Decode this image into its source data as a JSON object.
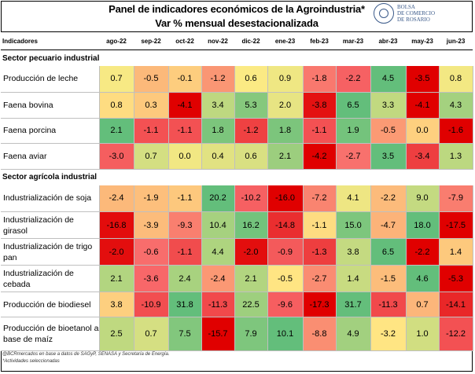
{
  "header": {
    "title": "Panel de indicadores económicos de la Agroindustria*",
    "subtitle": "Var % mensual desestacionalizada",
    "logo_text": [
      "BOLSA",
      "DE COMERCIO",
      "DE ROSARIO"
    ]
  },
  "footnotes": [
    "@BCRmercados en base a datos de SAGyP, SENASA y Secretaría de Energía.",
    "*Actividades seleccionadas"
  ],
  "colors": {
    "red": "#e00000",
    "orange": "#f8696b",
    "yellow": "#ffeb84",
    "green": "#63be7b"
  },
  "chart_data": {
    "type": "table",
    "row_header": "Indicadores",
    "columns": [
      "ago-22",
      "sep-22",
      "oct-22",
      "nov-22",
      "dic-22",
      "ene-23",
      "feb-23",
      "mar-23",
      "abr-23",
      "may-23",
      "jun-23"
    ],
    "sections": [
      {
        "name": "Sector pecuario industrial",
        "rows": [
          {
            "label": "Producción de leche",
            "values": [
              0.7,
              -0.5,
              -0.1,
              -1.2,
              0.6,
              0.9,
              -1.8,
              -2.2,
              4.5,
              -3.5,
              0.8
            ]
          },
          {
            "label": "Faena bovina",
            "values": [
              0.8,
              0.3,
              -4.1,
              3.4,
              5.3,
              2.0,
              -3.8,
              6.5,
              3.3,
              -4.1,
              4.3
            ]
          },
          {
            "label": "Faena porcina",
            "values": [
              2.1,
              -1.1,
              -1.1,
              1.8,
              -1.2,
              1.8,
              -1.1,
              1.9,
              -0.5,
              0.0,
              -1.6
            ]
          },
          {
            "label": "Faena aviar",
            "values": [
              -3.0,
              0.7,
              0.0,
              0.4,
              0.6,
              2.1,
              -4.2,
              -2.7,
              3.5,
              -3.4,
              1.3
            ]
          }
        ]
      },
      {
        "name": "Sector agrícola industrial",
        "rows": [
          {
            "label": "Industrialización de soja",
            "values": [
              -2.4,
              -1.9,
              -1.1,
              20.2,
              -10.2,
              -16.0,
              -7.2,
              4.1,
              -2.2,
              9.0,
              -7.9
            ]
          },
          {
            "label": "Industrialización de girasol",
            "values": [
              -16.8,
              -3.9,
              -9.3,
              10.4,
              16.2,
              -14.8,
              -1.1,
              15.0,
              -4.7,
              18.0,
              -17.5
            ]
          },
          {
            "label": "Industrialización de trigo pan",
            "values": [
              -2.0,
              -0.6,
              -1.1,
              4.4,
              -2.0,
              -0.9,
              -1.3,
              3.8,
              6.5,
              -2.2,
              1.4
            ]
          },
          {
            "label": "Industrialización de cebada",
            "values": [
              2.1,
              -3.6,
              2.4,
              -2.4,
              2.1,
              -0.5,
              -2.7,
              1.4,
              -1.5,
              4.6,
              -5.3
            ]
          },
          {
            "label": "Producción de biodiesel",
            "values": [
              3.8,
              -10.9,
              31.8,
              -11.3,
              22.5,
              -9.6,
              -17.3,
              31.7,
              -11.3,
              0.7,
              -14.1
            ]
          },
          {
            "label": "Producción de bioetanol a base de maíz",
            "values": [
              2.5,
              0.7,
              7.5,
              -15.7,
              7.9,
              10.1,
              -8.8,
              4.9,
              -3.2,
              1.0,
              -12.2
            ]
          }
        ]
      }
    ]
  }
}
